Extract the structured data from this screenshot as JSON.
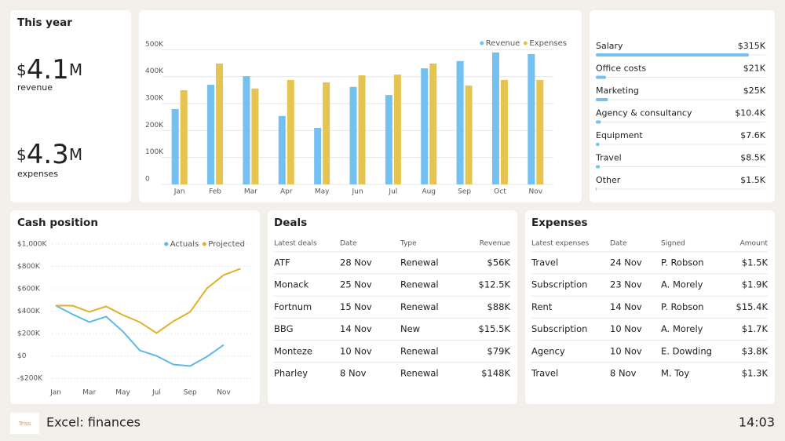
{
  "summary": {
    "title": "This year",
    "revenue": {
      "currency": "$",
      "amount": "4.1",
      "unit": "M",
      "label": "revenue"
    },
    "expenses": {
      "currency": "$",
      "amount": "4.3",
      "unit": "M",
      "label": "expenses"
    }
  },
  "chart_data": [
    {
      "type": "bar",
      "legend": "upper right",
      "categories": [
        "Jan",
        "Feb",
        "Mar",
        "Apr",
        "May",
        "Jun",
        "Jul",
        "Aug",
        "Sep",
        "Oct",
        "Nov"
      ],
      "series": [
        {
          "name": "Revenue",
          "color": "#74c0f0",
          "values": [
            280000,
            370000,
            402000,
            254000,
            210000,
            362000,
            332000,
            431000,
            458000,
            490000,
            484000
          ]
        },
        {
          "name": "Expenses",
          "color": "#e6c451",
          "values": [
            350000,
            449000,
            356000,
            388000,
            379000,
            405000,
            408000,
            449000,
            367000,
            388000,
            388000
          ]
        }
      ],
      "ylim": [
        0,
        510000
      ],
      "yticks": [
        0,
        {
          "value": 100000,
          "label": "100K"
        },
        {
          "value": 200000,
          "label": "200K"
        },
        {
          "value": 300000,
          "label": "300K"
        },
        {
          "value": 400000,
          "label": "400K"
        },
        {
          "value": 500000,
          "label": "500K"
        }
      ],
      "grid": true
    },
    {
      "type": "line",
      "title": "Cash position",
      "legend": "upper right",
      "categories": [
        "Jan",
        null,
        "Mar",
        null,
        "May",
        null,
        "Jul",
        null,
        "Sep",
        null,
        "Nov",
        null
      ],
      "series": [
        {
          "name": "Actuals",
          "color": "#5bb8ec",
          "values": [
            449,
            372,
            302,
            351,
            218,
            49,
            0,
            -77,
            -91,
            -7,
            98,
            null
          ]
        },
        {
          "name": "Projected",
          "color": "#e0b12a",
          "values": [
            449,
            449,
            393,
            442,
            365,
            302,
            204,
            309,
            393,
            604,
            723,
            779
          ]
        }
      ],
      "ylim": [
        -200,
        1000
      ],
      "yticks": [
        {
          "value": 1000,
          "label": "$1,000K"
        },
        {
          "value": 800,
          "label": "$800K"
        },
        {
          "value": 600,
          "label": "$600K"
        },
        {
          "value": 400,
          "label": "$400K"
        },
        {
          "value": 200,
          "label": "$200K"
        },
        {
          "value": 0,
          "label": "$0"
        },
        {
          "value": -200,
          "label": "-$200K"
        }
      ],
      "grid": true
    }
  ],
  "breakdown": {
    "color": "#74c0f0",
    "items": [
      {
        "name": "Salary",
        "value": 315000,
        "value_label": "$315K"
      },
      {
        "name": "Office costs",
        "value": 21000,
        "value_label": "$21K"
      },
      {
        "name": "Marketing",
        "value": 25000,
        "value_label": "$25K"
      },
      {
        "name": "Agency & consultancy",
        "value": 10400,
        "value_label": "$10.4K"
      },
      {
        "name": "Equipment",
        "value": 7600,
        "value_label": "$7.6K"
      },
      {
        "name": "Travel",
        "value": 8500,
        "value_label": "$8.5K"
      },
      {
        "name": "Other",
        "value": 1500,
        "value_label": "$1.5K"
      }
    ]
  },
  "deals": {
    "title": "Deals",
    "header": [
      "Latest deals",
      "Date",
      "Type",
      "Revenue"
    ],
    "rows": [
      [
        "ATF",
        "28 Nov",
        "Renewal",
        "$56K"
      ],
      [
        "Monack",
        "25 Nov",
        "Renewal",
        "$12.5K"
      ],
      [
        "Fortnum",
        "15 Nov",
        "Renewal",
        "$88K"
      ],
      [
        "BBG",
        "14 Nov",
        "New",
        "$15.5K"
      ],
      [
        "Monteze",
        "10 Nov",
        "Renewal",
        "$79K"
      ],
      [
        "Pharley",
        "8 Nov",
        "Renewal",
        "$148K"
      ]
    ]
  },
  "expenses_table": {
    "title": "Expenses",
    "header": [
      "Latest expenses",
      "Date",
      "Signed",
      "Amount"
    ],
    "rows": [
      [
        "Travel",
        "24 Nov",
        "P. Robson",
        "$1.5K"
      ],
      [
        "Subscription",
        "23 Nov",
        "A. Morely",
        "$1.9K"
      ],
      [
        "Rent",
        "14 Nov",
        "P. Robson",
        "$15.4K"
      ],
      [
        "Subscription",
        "10 Nov",
        "A. Morely",
        "$1.7K"
      ],
      [
        "Agency",
        "10 Nov",
        "E. Dowding",
        "$3.8K"
      ],
      [
        "Travel",
        "8 Nov",
        "M. Toy",
        "$1.3K"
      ]
    ]
  },
  "footer": {
    "logo": "Triss",
    "app": "Excel: finances",
    "time": "14:03"
  }
}
